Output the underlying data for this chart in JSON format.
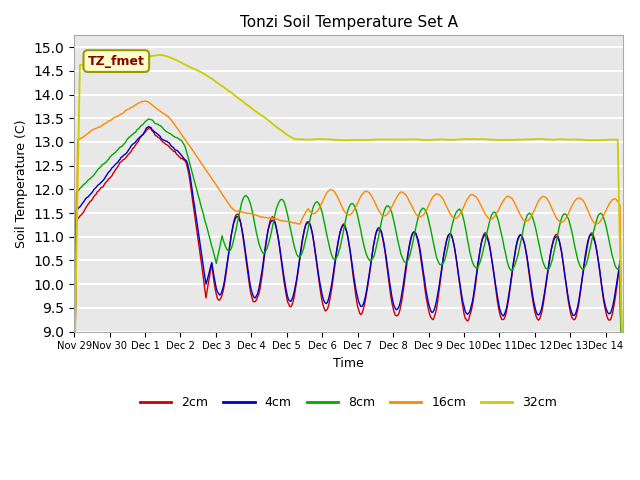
{
  "title": "Tonzi Soil Temperature Set A",
  "xlabel": "Time",
  "ylabel": "Soil Temperature (C)",
  "ylim": [
    9.0,
    15.25
  ],
  "yticks": [
    9.0,
    9.5,
    10.0,
    10.5,
    11.0,
    11.5,
    12.0,
    12.5,
    13.0,
    13.5,
    14.0,
    14.5,
    15.0
  ],
  "plot_bg_color": "#e8e8e8",
  "series_colors": {
    "2cm": "#cc0000",
    "4cm": "#0000cc",
    "8cm": "#00aa00",
    "16cm": "#ff8800",
    "32cm": "#cccc00"
  },
  "legend_label": "TZ_fmet",
  "legend_box_bg": "#ffffcc",
  "legend_box_border": "#999900",
  "xtick_vals": [
    0,
    1,
    2,
    3,
    4,
    5,
    6,
    7,
    8,
    9,
    10,
    11,
    12,
    13,
    14,
    15
  ],
  "xtick_labels": [
    "Nov 29",
    "Nov 30",
    "Dec 1",
    "Dec 2",
    "Dec 3",
    "Dec 4",
    "Dec 5",
    "Dec 6",
    "Dec 7",
    "Dec 8",
    "Dec 9",
    "Dec 10",
    "Dec 11",
    "Dec 12",
    "Dec 13",
    "Dec 14"
  ]
}
